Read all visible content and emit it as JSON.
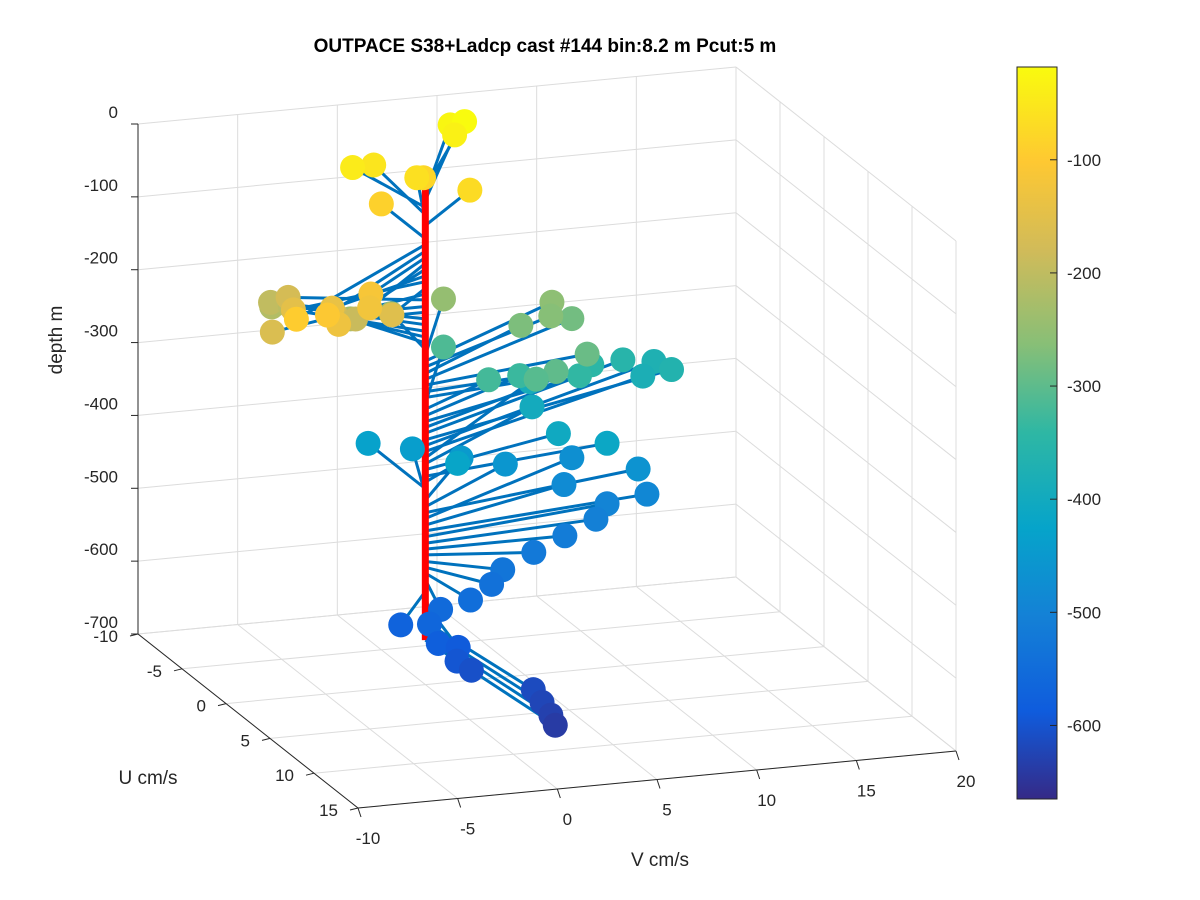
{
  "chart_data": {
    "type": "scatter",
    "projection": "3d",
    "title": "OUTPACE S38+Ladcp cast #144 bin:8.2 m  Pcut:5 m",
    "xlabel": "V cm/s",
    "ylabel": "U cm/s",
    "zlabel": "depth m",
    "xlim": [
      -10,
      20
    ],
    "ylim": [
      -10,
      15
    ],
    "zlim": [
      -700,
      0
    ],
    "xticks": [
      "-10",
      "-5",
      "0",
      "5",
      "10",
      "15",
      "20"
    ],
    "yticks": [
      "-10",
      "-5",
      "0",
      "5",
      "10",
      "15"
    ],
    "zticks": [
      "0",
      "-100",
      "-200",
      "-300",
      "-400",
      "-500",
      "-600",
      "-700"
    ],
    "grid": true,
    "colormap": "parula",
    "colorbar": {
      "location": "right",
      "limits": [
        -665,
        -18
      ],
      "ticks": [
        "-100",
        "-200",
        "-300",
        "-400",
        "-500",
        "-600"
      ]
    },
    "stick_color": "#0072BD",
    "axis_line_color": "#FF0000",
    "description": "Each point is a velocity vector (V, U) at a given depth, drawn as a stick from the zero-velocity axis (red vertical line) to a marker colored by depth.",
    "points": [
      {
        "v": 5.5,
        "u": -8.0,
        "z": -18
      },
      {
        "v": 5.0,
        "u": -8.5,
        "z": -26
      },
      {
        "v": 5.0,
        "u": -8.0,
        "z": -35
      },
      {
        "v": -1.0,
        "u": -6.0,
        "z": -45
      },
      {
        "v": 0.5,
        "u": -7.0,
        "z": -55
      },
      {
        "v": 2.0,
        "u": -5.5,
        "z": -62
      },
      {
        "v": 4.0,
        "u": -4.0,
        "z": -70
      },
      {
        "v": 3.0,
        "u": -7.0,
        "z": -79
      },
      {
        "v": 0.0,
        "u": -5.0,
        "z": -88
      },
      {
        "v": -10.0,
        "u": 8.0,
        "z": -96
      },
      {
        "v": -8.0,
        "u": 7.0,
        "z": -105
      },
      {
        "v": -4.5,
        "u": 4.0,
        "z": -114
      },
      {
        "v": -5.0,
        "u": 5.0,
        "z": -122
      },
      {
        "v": -7.0,
        "u": 6.0,
        "z": -130
      },
      {
        "v": -6.0,
        "u": 3.0,
        "z": -139
      },
      {
        "v": -7.5,
        "u": 2.0,
        "z": -147
      },
      {
        "v": -3.0,
        "u": 3.0,
        "z": -156
      },
      {
        "v": -9.0,
        "u": 3.0,
        "z": -164
      },
      {
        "v": -6.0,
        "u": -2.0,
        "z": -172
      },
      {
        "v": -4.5,
        "u": 0.0,
        "z": -181
      },
      {
        "v": -3.5,
        "u": 0.0,
        "z": -189
      },
      {
        "v": -6.0,
        "u": -4.0,
        "z": -198
      },
      {
        "v": -5.0,
        "u": -4.0,
        "z": -206
      },
      {
        "v": -5.5,
        "u": -5.0,
        "z": -215
      },
      {
        "v": -3.0,
        "u": -4.0,
        "z": -223
      },
      {
        "v": -2.0,
        "u": -4.0,
        "z": -231
      },
      {
        "v": 0.5,
        "u": -5.0,
        "z": -240
      },
      {
        "v": 4.0,
        "u": -7.0,
        "z": -248
      },
      {
        "v": 9.0,
        "u": -6.0,
        "z": -256
      },
      {
        "v": 8.5,
        "u": -5.0,
        "z": -264
      },
      {
        "v": 7.0,
        "u": -5.0,
        "z": -273
      },
      {
        "v": 10.0,
        "u": -6.0,
        "z": -281
      },
      {
        "v": 9.0,
        "u": -2.0,
        "z": -289
      },
      {
        "v": 7.0,
        "u": -1.0,
        "z": -298
      },
      {
        "v": 6.0,
        "u": -1.0,
        "z": -306
      },
      {
        "v": 4.0,
        "u": -7.0,
        "z": -314
      },
      {
        "v": 4.5,
        "u": -3.0,
        "z": -322
      },
      {
        "v": 6.5,
        "u": -4.0,
        "z": -331
      },
      {
        "v": 9.5,
        "u": -4.0,
        "z": -339
      },
      {
        "v": 11.0,
        "u": -6.0,
        "z": -347
      },
      {
        "v": 13.0,
        "u": -7.0,
        "z": -355
      },
      {
        "v": 15.0,
        "u": -6.0,
        "z": -364
      },
      {
        "v": 15.0,
        "u": -8.0,
        "z": -372
      },
      {
        "v": 14.0,
        "u": -7.0,
        "z": -380
      },
      {
        "v": 9.0,
        "u": -8.5,
        "z": -389
      },
      {
        "v": 8.0,
        "u": -6.0,
        "z": -397
      },
      {
        "v": 8.0,
        "u": -3.0,
        "z": -405
      },
      {
        "v": 10.0,
        "u": -2.0,
        "z": -414
      },
      {
        "v": 2.5,
        "u": -2.0,
        "z": -422
      },
      {
        "v": 0.0,
        "u": -6.5,
        "z": -431
      },
      {
        "v": 2.0,
        "u": -6.0,
        "z": -439
      },
      {
        "v": 4.0,
        "u": -5.0,
        "z": -447
      },
      {
        "v": 6.0,
        "u": -4.5,
        "z": -456
      },
      {
        "v": 12.0,
        "u": -3.0,
        "z": -464
      },
      {
        "v": 10.0,
        "u": -6.0,
        "z": -472
      },
      {
        "v": 8.5,
        "u": -3.5,
        "z": -481
      },
      {
        "v": 12.0,
        "u": -2.0,
        "z": -489
      },
      {
        "v": 10.0,
        "u": -2.0,
        "z": -497
      },
      {
        "v": 9.0,
        "u": -1.0,
        "z": -506
      },
      {
        "v": 7.0,
        "u": 0.0,
        "z": -514
      },
      {
        "v": 5.0,
        "u": 1.0,
        "z": -522
      },
      {
        "v": 3.0,
        "u": 2.0,
        "z": -531
      },
      {
        "v": 2.0,
        "u": 3.0,
        "z": -539
      },
      {
        "v": 0.5,
        "u": 4.0,
        "z": -547
      },
      {
        "v": -1.0,
        "u": 4.0,
        "z": -556
      },
      {
        "v": -2.0,
        "u": 5.0,
        "z": -564
      },
      {
        "v": -3.0,
        "u": 4.0,
        "z": -572
      },
      {
        "v": -2.0,
        "u": 6.0,
        "z": -581
      },
      {
        "v": -1.0,
        "u": 6.0,
        "z": -589
      },
      {
        "v": -1.5,
        "u": 7.0,
        "z": -597
      },
      {
        "v": -1.0,
        "u": 7.5,
        "z": -606
      },
      {
        "v": 1.0,
        "u": 10.0,
        "z": -614
      },
      {
        "v": 1.0,
        "u": 11.0,
        "z": -622
      },
      {
        "v": 1.0,
        "u": 12.0,
        "z": -630
      },
      {
        "v": 1.0,
        "u": 12.5,
        "z": -639
      }
    ]
  }
}
